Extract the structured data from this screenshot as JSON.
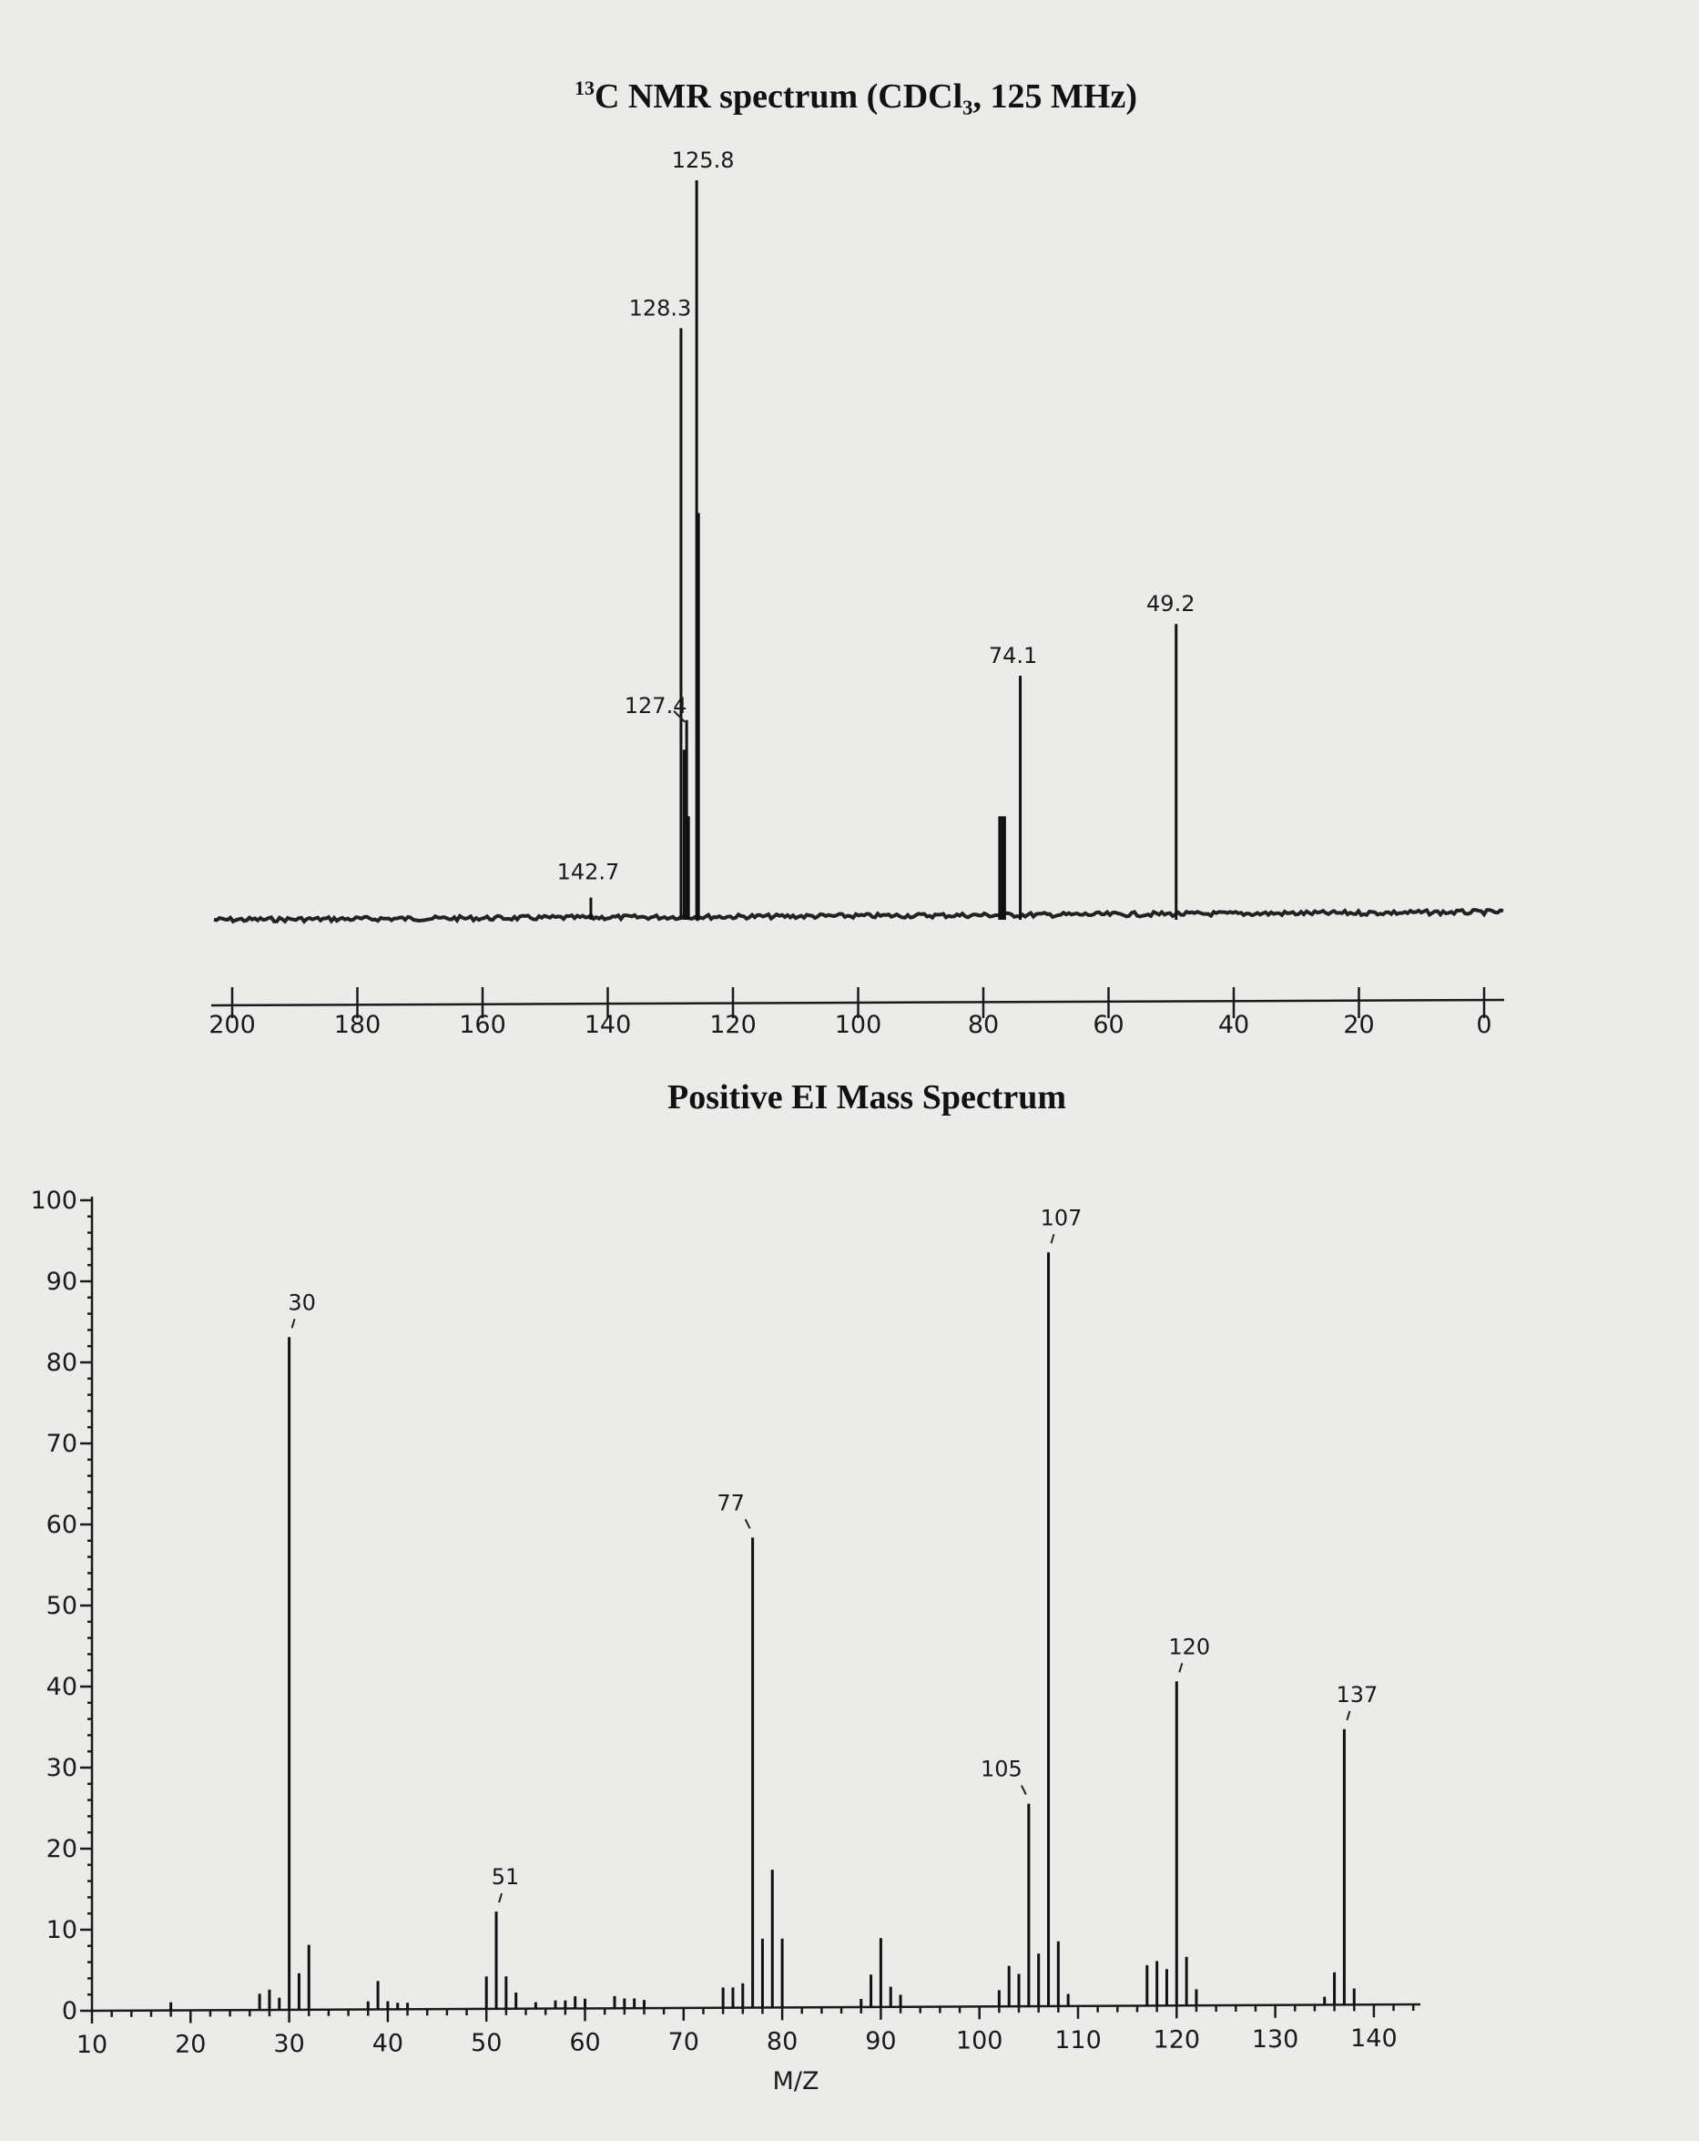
{
  "chart_data": [
    {
      "type": "bar",
      "title_sup": "13",
      "title": "C NMR spectrum (CDCl₃, 125 MHz)",
      "xlabel": "",
      "ylabel": "",
      "xlim": [
        200,
        0
      ],
      "x_reversed": true,
      "x_ticks": [
        200,
        180,
        160,
        140,
        120,
        100,
        80,
        60,
        40,
        20,
        0
      ],
      "grid": false,
      "legend": "none",
      "peaks": [
        {
          "x": 142.7,
          "y": 3,
          "label": "142.7"
        },
        {
          "x": 128.3,
          "y": 80,
          "label": "128.3"
        },
        {
          "x": 127.8,
          "y": 23
        },
        {
          "x": 127.4,
          "y": 27,
          "label": "127.4"
        },
        {
          "x": 127.1,
          "y": 14
        },
        {
          "x": 125.8,
          "y": 100,
          "label": "125.8"
        },
        {
          "x": 125.5,
          "y": 55
        },
        {
          "x": 77.4,
          "y": 14
        },
        {
          "x": 77.0,
          "y": 14
        },
        {
          "x": 76.6,
          "y": 14
        },
        {
          "x": 74.1,
          "y": 33,
          "label": "74.1"
        },
        {
          "x": 49.2,
          "y": 40,
          "label": "49.2"
        }
      ]
    },
    {
      "type": "bar",
      "title": "Positive EI Mass Spectrum",
      "xlabel": "M/Z",
      "ylabel": "",
      "xlim": [
        10,
        145
      ],
      "ylim": [
        0,
        100
      ],
      "x_ticks": [
        10,
        20,
        30,
        40,
        50,
        60,
        70,
        80,
        90,
        100,
        110,
        120,
        130,
        140
      ],
      "y_ticks": [
        0,
        10,
        20,
        30,
        40,
        50,
        60,
        70,
        80,
        90,
        100
      ],
      "grid": false,
      "legend": "none",
      "peaks": [
        {
          "x": 18,
          "y": 1
        },
        {
          "x": 27,
          "y": 2
        },
        {
          "x": 28,
          "y": 2.5
        },
        {
          "x": 29,
          "y": 1.5
        },
        {
          "x": 30,
          "y": 83,
          "label": "30"
        },
        {
          "x": 31,
          "y": 4.5
        },
        {
          "x": 32,
          "y": 8
        },
        {
          "x": 38,
          "y": 1
        },
        {
          "x": 39,
          "y": 3.5
        },
        {
          "x": 40,
          "y": 1
        },
        {
          "x": 41,
          "y": 0.8
        },
        {
          "x": 42,
          "y": 0.8
        },
        {
          "x": 50,
          "y": 4
        },
        {
          "x": 51,
          "y": 12,
          "label": "51"
        },
        {
          "x": 52,
          "y": 4
        },
        {
          "x": 53,
          "y": 2
        },
        {
          "x": 55,
          "y": 0.8
        },
        {
          "x": 57,
          "y": 1
        },
        {
          "x": 58,
          "y": 1
        },
        {
          "x": 59,
          "y": 1.5
        },
        {
          "x": 60,
          "y": 1.2
        },
        {
          "x": 63,
          "y": 1.5
        },
        {
          "x": 64,
          "y": 1.2
        },
        {
          "x": 65,
          "y": 1.2
        },
        {
          "x": 66,
          "y": 1
        },
        {
          "x": 74,
          "y": 2.5
        },
        {
          "x": 75,
          "y": 2.5
        },
        {
          "x": 76,
          "y": 3
        },
        {
          "x": 77,
          "y": 58,
          "label": "77"
        },
        {
          "x": 78,
          "y": 8.5
        },
        {
          "x": 79,
          "y": 17
        },
        {
          "x": 80,
          "y": 8.5
        },
        {
          "x": 88,
          "y": 1
        },
        {
          "x": 89,
          "y": 4
        },
        {
          "x": 90,
          "y": 8.5
        },
        {
          "x": 91,
          "y": 2.5
        },
        {
          "x": 92,
          "y": 1.5
        },
        {
          "x": 102,
          "y": 2
        },
        {
          "x": 103,
          "y": 5
        },
        {
          "x": 104,
          "y": 4
        },
        {
          "x": 105,
          "y": 25,
          "label": "105"
        },
        {
          "x": 106,
          "y": 6.5
        },
        {
          "x": 107,
          "y": 93,
          "label": "107"
        },
        {
          "x": 108,
          "y": 8
        },
        {
          "x": 109,
          "y": 1.5
        },
        {
          "x": 117,
          "y": 5
        },
        {
          "x": 118,
          "y": 5.5
        },
        {
          "x": 119,
          "y": 4.5
        },
        {
          "x": 120,
          "y": 40,
          "label": "120"
        },
        {
          "x": 121,
          "y": 6
        },
        {
          "x": 122,
          "y": 2
        },
        {
          "x": 135,
          "y": 1
        },
        {
          "x": 136,
          "y": 4
        },
        {
          "x": 137,
          "y": 34,
          "label": "137"
        },
        {
          "x": 138,
          "y": 2
        }
      ]
    }
  ]
}
